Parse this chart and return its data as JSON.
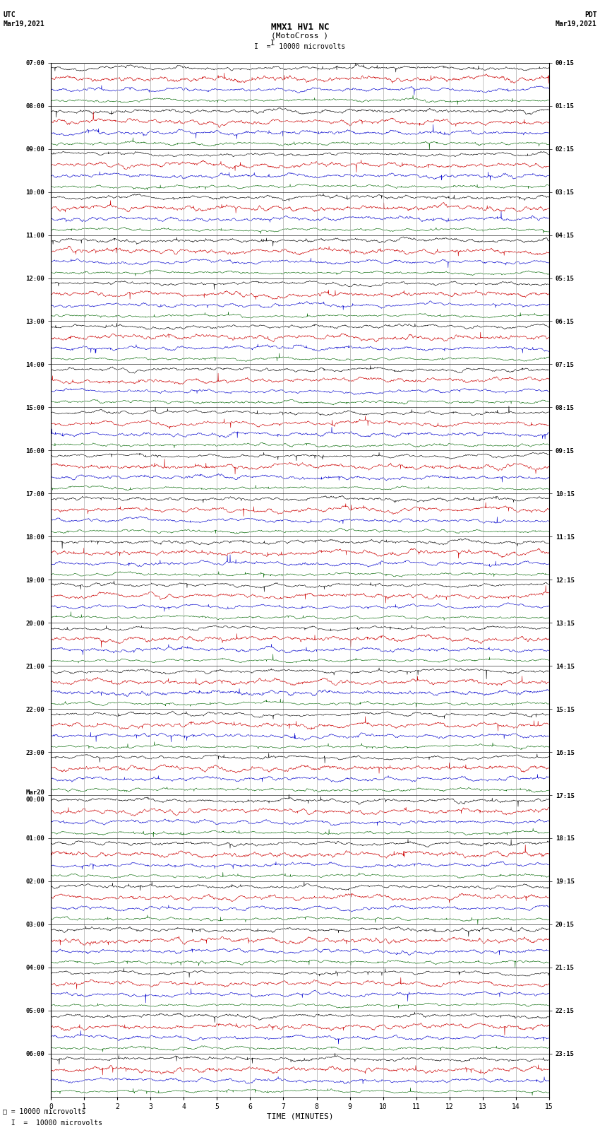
{
  "title_line1": "MMX1 HV1 NC",
  "title_line2": "(MotoCross )",
  "scale_label": "I  =  10000 microvolts",
  "left_header": "UTC",
  "left_date": "Mar19,2021",
  "right_header": "PDT",
  "right_date": "Mar19,2021",
  "xlabel": "TIME (MINUTES)",
  "xmin": 0,
  "xmax": 15,
  "background_color": "#ffffff",
  "trace_colors": [
    "#000000",
    "#cc0000",
    "#0000cc",
    "#006600"
  ],
  "utc_labels": [
    "07:00",
    "08:00",
    "09:00",
    "10:00",
    "11:00",
    "12:00",
    "13:00",
    "14:00",
    "15:00",
    "16:00",
    "17:00",
    "18:00",
    "19:00",
    "20:00",
    "21:00",
    "22:00",
    "23:00",
    "Mar20\n00:00",
    "01:00",
    "02:00",
    "03:00",
    "04:00",
    "05:00",
    "06:00"
  ],
  "pdt_labels": [
    "00:15",
    "01:15",
    "02:15",
    "03:15",
    "04:15",
    "05:15",
    "06:15",
    "07:15",
    "08:15",
    "09:15",
    "10:15",
    "11:15",
    "12:15",
    "13:15",
    "14:15",
    "15:15",
    "16:15",
    "17:15",
    "18:15",
    "19:15",
    "20:15",
    "21:15",
    "22:15",
    "23:15"
  ],
  "num_hours": 24,
  "traces_per_hour": 4,
  "noise_scales": [
    0.28,
    0.38,
    0.3,
    0.22
  ],
  "trace_lw": 0.4,
  "grid_color": "#aaaaaa",
  "separator_color": "#000000"
}
